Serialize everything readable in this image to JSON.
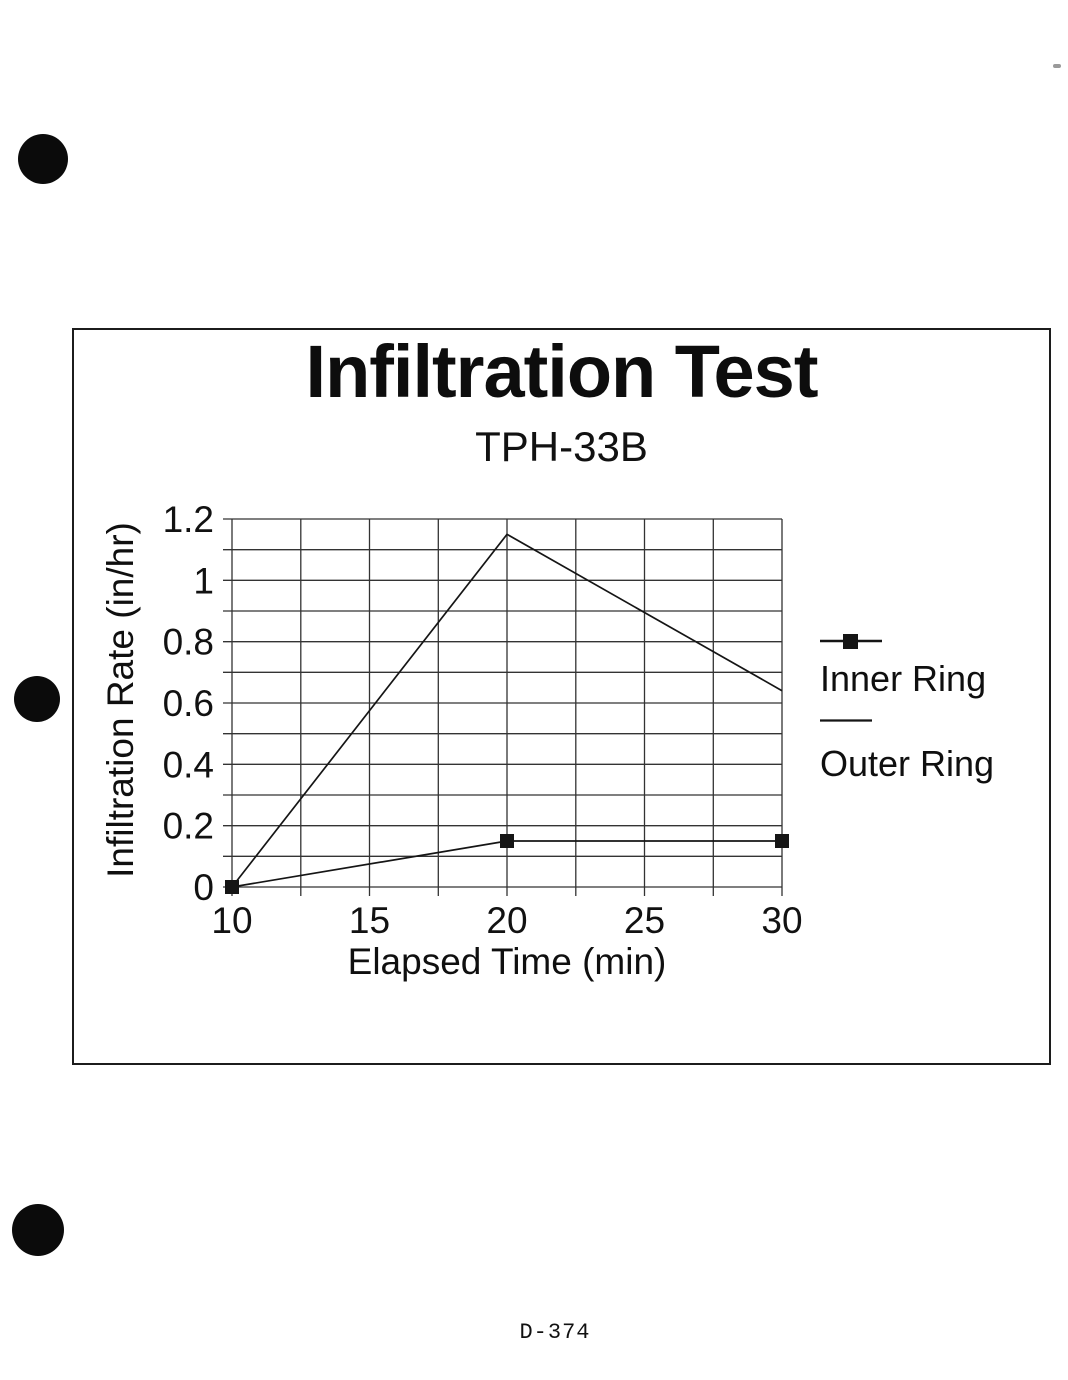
{
  "page": {
    "page_number": "D-374"
  },
  "colors": {
    "ink": "#151515",
    "grid": "#333333",
    "paper": "#ffffff"
  },
  "chart_data": {
    "type": "line",
    "title": "Infiltration Test",
    "subtitle": "TPH-33B",
    "xlabel": "Elapsed Time (min)",
    "ylabel": "Infiltration Rate (in/hr)",
    "xlim": [
      10,
      30
    ],
    "ylim": [
      0,
      1.2
    ],
    "x_grid_step": 2.5,
    "y_grid_step": 0.1,
    "x_ticks": [
      10,
      15,
      20,
      25,
      30
    ],
    "x_tick_labels": [
      "10",
      "15",
      "20",
      "25",
      "30"
    ],
    "y_ticks": [
      0,
      0.2,
      0.4,
      0.6,
      0.8,
      1.0,
      1.2
    ],
    "y_tick_labels": [
      "0",
      "0.2",
      "0.4",
      "0.6",
      "0.8",
      "1",
      "1.2"
    ],
    "grid": "on",
    "legend_position": "right-of-plot",
    "series": [
      {
        "name": "Inner Ring",
        "marker": "square",
        "x": [
          10,
          20,
          30
        ],
        "values": [
          0,
          0.15,
          0.15
        ]
      },
      {
        "name": "Outer Ring",
        "marker": "none",
        "x": [
          10,
          20,
          30
        ],
        "values": [
          0,
          1.15,
          0.64
        ]
      }
    ]
  }
}
